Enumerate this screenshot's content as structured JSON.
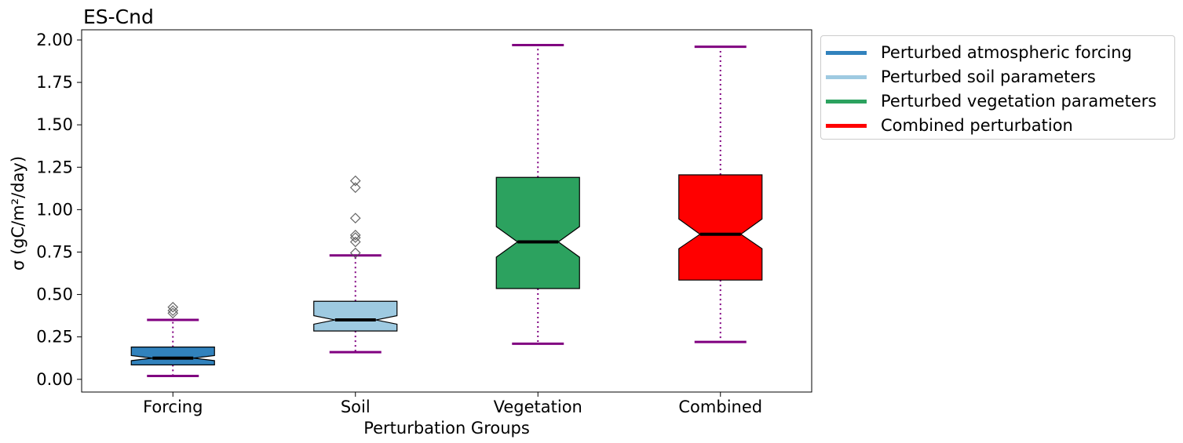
{
  "chart_data": {
    "type": "boxplot",
    "title": "ES-Cnd",
    "xlabel": "Perturbation Groups",
    "ylabel": "σ (gC/m²/day)",
    "ylim": [
      -0.075,
      2.06
    ],
    "yticks": [
      0.0,
      0.25,
      0.5,
      0.75,
      1.0,
      1.25,
      1.5,
      1.75,
      2.0
    ],
    "ytick_labels": [
      "0.00",
      "0.25",
      "0.50",
      "0.75",
      "1.00",
      "1.25",
      "1.50",
      "1.75",
      "2.00"
    ],
    "categories": [
      "Forcing",
      "Soil",
      "Vegetation",
      "Combined"
    ],
    "notched": true,
    "grid": false,
    "legend_position": "outside top-right",
    "whisker_color": "#800080",
    "median_color": "#000000",
    "boxes": [
      {
        "category": "Forcing",
        "whislo": 0.02,
        "q1": 0.085,
        "med": 0.125,
        "q3": 0.19,
        "whishi": 0.35,
        "notch_lo": 0.11,
        "notch_hi": 0.14,
        "fliers": [
          0.39,
          0.405,
          0.425
        ],
        "color": "#3182bd"
      },
      {
        "category": "Soil",
        "whislo": 0.16,
        "q1": 0.285,
        "med": 0.35,
        "q3": 0.46,
        "whishi": 0.73,
        "notch_lo": 0.325,
        "notch_hi": 0.375,
        "fliers": [
          0.745,
          0.81,
          0.835,
          0.85,
          0.95,
          1.13,
          1.17
        ],
        "color": "#9ecae1"
      },
      {
        "category": "Vegetation",
        "whislo": 0.21,
        "q1": 0.535,
        "med": 0.81,
        "q3": 1.19,
        "whishi": 1.97,
        "notch_lo": 0.72,
        "notch_hi": 0.9,
        "fliers": [],
        "color": "#2ca25f"
      },
      {
        "category": "Combined",
        "whislo": 0.22,
        "q1": 0.585,
        "med": 0.855,
        "q3": 1.205,
        "whishi": 1.96,
        "notch_lo": 0.77,
        "notch_hi": 0.945,
        "fliers": [],
        "color": "#ff0000"
      }
    ],
    "legend": [
      {
        "label": "Perturbed atmospheric forcing",
        "color": "#3182bd"
      },
      {
        "label": "Perturbed soil parameters",
        "color": "#9ecae1"
      },
      {
        "label": "Perturbed vegetation parameters",
        "color": "#2ca25f"
      },
      {
        "label": "Combined perturbation",
        "color": "#ff0000"
      }
    ]
  }
}
